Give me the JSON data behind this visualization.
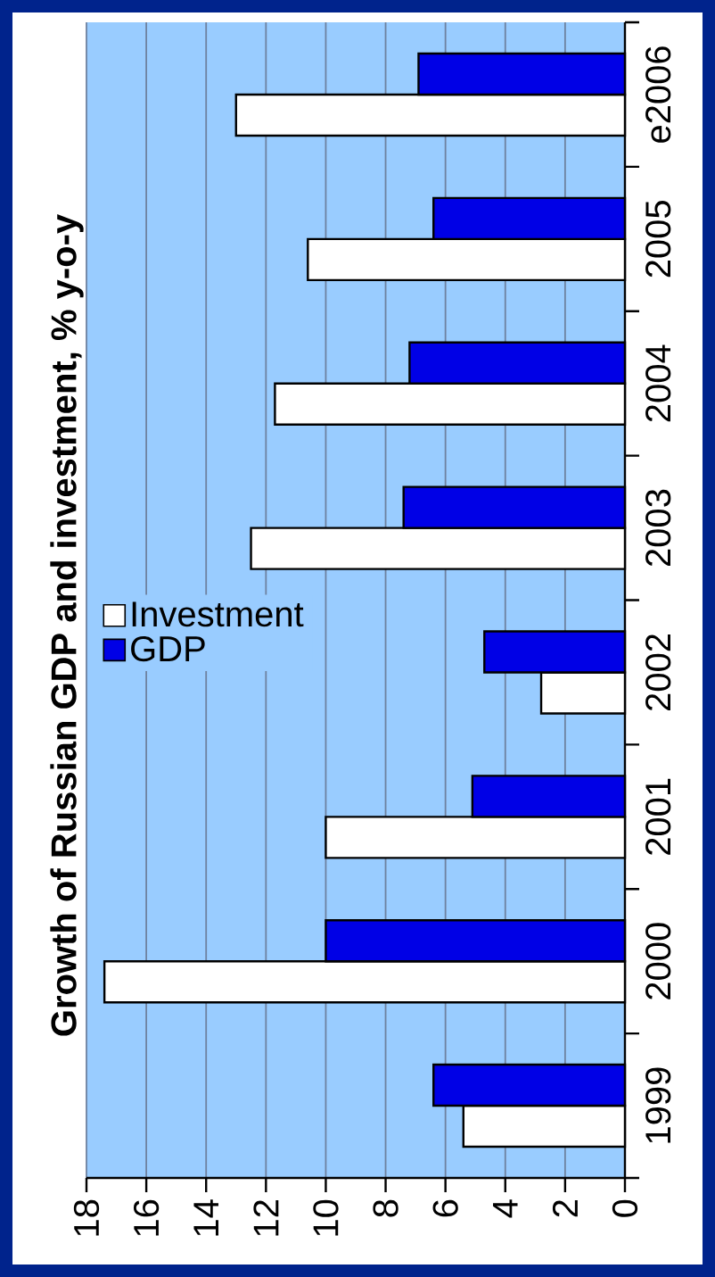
{
  "chart_data": {
    "type": "bar",
    "orientation": "horizontal",
    "title": "Growth of Russian GDP and investment, % y-o-y",
    "categories": [
      "e2006",
      "2005",
      "2004",
      "2003",
      "2002",
      "2001",
      "2000",
      "1999"
    ],
    "series": [
      {
        "name": "Investment",
        "color": "#ffffff",
        "values": [
          13.0,
          10.6,
          11.7,
          12.5,
          2.8,
          10.0,
          17.4,
          5.4
        ]
      },
      {
        "name": "GDP",
        "color": "#0000e6",
        "values": [
          6.9,
          6.4,
          7.2,
          7.4,
          4.7,
          5.1,
          10.0,
          6.4
        ]
      }
    ],
    "xlim": [
      18,
      0
    ],
    "xticks": [
      18,
      16,
      14,
      12,
      10,
      8,
      6,
      4,
      2,
      0
    ],
    "grid": "x",
    "legend": "left"
  }
}
